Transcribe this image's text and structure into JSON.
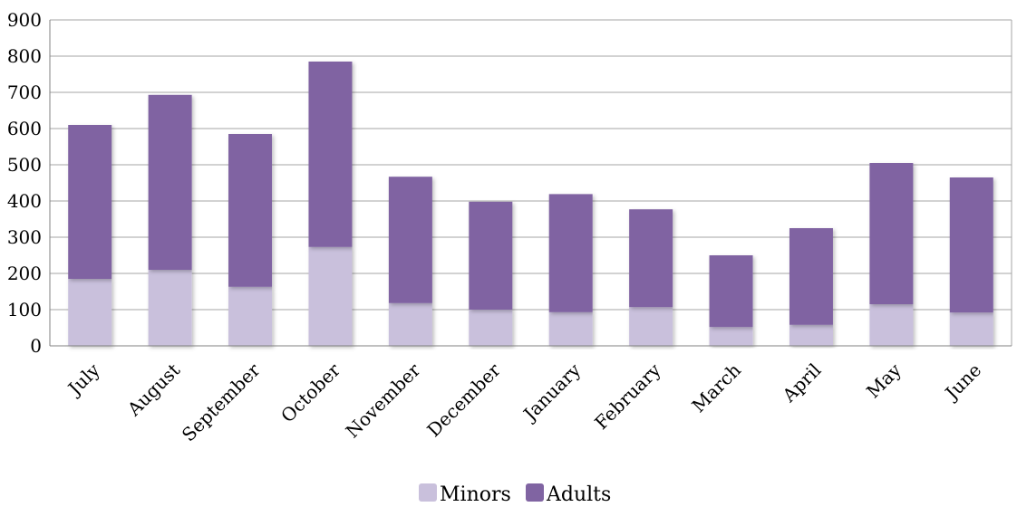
{
  "chart_data": {
    "type": "bar",
    "stacked": true,
    "categories": [
      "July",
      "August",
      "September",
      "October",
      "November",
      "December",
      "January",
      "February",
      "March",
      "April",
      "May",
      "June"
    ],
    "series": [
      {
        "name": "Minors",
        "color": "#c9c0dc",
        "values": [
          185,
          210,
          163,
          273,
          118,
          100,
          93,
          107,
          52,
          58,
          115,
          92
        ]
      },
      {
        "name": "Adults",
        "color": "#8064a2",
        "values": [
          425,
          483,
          422,
          512,
          349,
          298,
          326,
          270,
          198,
          267,
          390,
          373
        ]
      }
    ],
    "ylim": [
      0,
      900
    ],
    "yticks": [
      0,
      100,
      200,
      300,
      400,
      500,
      600,
      700,
      800,
      900
    ],
    "grid": true,
    "legend_position": "bottom",
    "title": "",
    "xlabel": "",
    "ylabel": ""
  }
}
